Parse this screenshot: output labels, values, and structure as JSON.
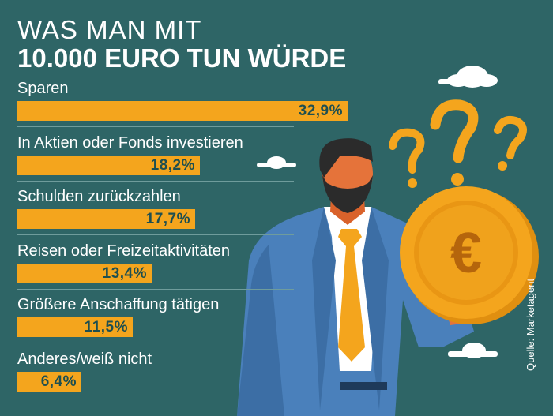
{
  "title_line1": "WAS MAN MIT",
  "title_line2": "10.000 EURO TUN WÜRDE",
  "source": "Quelle: Marketagent",
  "colors": {
    "background": "#2e6566",
    "bar": "#f4a51d",
    "value_text": "#1e4f50",
    "label_text": "#ffffff"
  },
  "chart_data": {
    "type": "bar",
    "orientation": "horizontal",
    "title": "WAS MAN MIT 10.000 EURO TUN WÜRDE",
    "categories": [
      "Sparen",
      "In Aktien oder Fonds investieren",
      "Schulden zurückzahlen",
      "Reisen oder Freizeitaktivitäten",
      "Größere Anschaffung tätigen",
      "Anderes/weiß nicht"
    ],
    "values": [
      32.9,
      18.2,
      17.7,
      13.4,
      11.5,
      6.4
    ],
    "value_labels": [
      "32,9%",
      "18,2%",
      "17,7%",
      "13,4%",
      "11,5%",
      "6,4%"
    ],
    "unit": "%"
  }
}
